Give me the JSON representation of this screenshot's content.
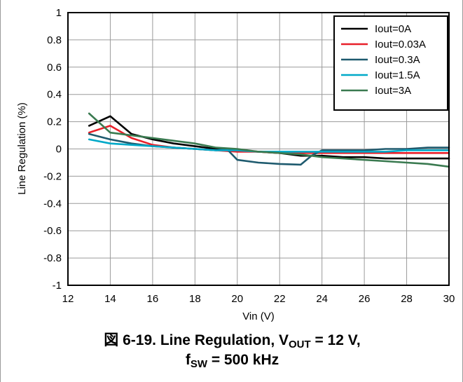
{
  "chart_data": {
    "type": "line",
    "title": "",
    "xlabel": "Vin (V)",
    "ylabel": "Line Regulation (%)",
    "xlim": [
      12,
      30
    ],
    "ylim": [
      -1,
      1
    ],
    "xticks": [
      12,
      14,
      16,
      18,
      20,
      22,
      24,
      26,
      28,
      30
    ],
    "yticks": [
      1,
      0.8,
      0.6,
      0.4,
      0.2,
      0,
      -0.2,
      -0.4,
      -0.6,
      -0.8,
      -1
    ],
    "grid": true,
    "legend_position": "top-right",
    "series": [
      {
        "name": "Iout=0A",
        "color": "#000000",
        "x": [
          13,
          14,
          15,
          16,
          17,
          18,
          19,
          20,
          21,
          22,
          23,
          24,
          25,
          26,
          27,
          28,
          29,
          30
        ],
        "y": [
          0.17,
          0.24,
          0.11,
          0.07,
          0.04,
          0.02,
          0.0,
          -0.01,
          -0.02,
          -0.03,
          -0.05,
          -0.05,
          -0.06,
          -0.06,
          -0.07,
          -0.07,
          -0.07,
          -0.07
        ]
      },
      {
        "name": "Iout=0.03A",
        "color": "#e8202a",
        "x": [
          13,
          14,
          15,
          16,
          17,
          18,
          19,
          20,
          21,
          22,
          23,
          24,
          25,
          26,
          27,
          28,
          29,
          30
        ],
        "y": [
          0.12,
          0.17,
          0.08,
          0.03,
          0.01,
          0.0,
          -0.01,
          -0.02,
          -0.02,
          -0.03,
          -0.03,
          -0.03,
          -0.03,
          -0.03,
          -0.03,
          -0.03,
          -0.03,
          -0.03
        ]
      },
      {
        "name": "Iout=0.3A",
        "color": "#1e5a6e",
        "x": [
          13,
          14,
          15,
          16,
          17,
          18,
          19,
          19.5,
          20,
          21,
          22,
          23,
          23.5,
          24,
          25,
          26,
          27,
          28,
          29,
          30
        ],
        "y": [
          0.11,
          0.07,
          0.04,
          0.02,
          0.01,
          0.0,
          -0.01,
          0.0,
          -0.08,
          -0.1,
          -0.11,
          -0.115,
          -0.05,
          -0.01,
          -0.01,
          -0.01,
          0.0,
          0.0,
          0.01,
          0.01
        ]
      },
      {
        "name": "Iout=1.5A",
        "color": "#00a9c8",
        "x": [
          13,
          14,
          15,
          16,
          17,
          18,
          19,
          20,
          21,
          22,
          23,
          24,
          25,
          26,
          27,
          28,
          29,
          30
        ],
        "y": [
          0.07,
          0.04,
          0.03,
          0.02,
          0.01,
          0.0,
          -0.01,
          -0.01,
          -0.02,
          -0.02,
          -0.02,
          -0.02,
          -0.02,
          -0.02,
          -0.02,
          -0.01,
          -0.01,
          -0.01
        ]
      },
      {
        "name": "Iout=3A",
        "color": "#3a7a50",
        "x": [
          13,
          14,
          15,
          16,
          17,
          18,
          19,
          20,
          21,
          22,
          23,
          24,
          25,
          26,
          27,
          28,
          29,
          30
        ],
        "y": [
          0.26,
          0.12,
          0.1,
          0.08,
          0.06,
          0.04,
          0.01,
          0.0,
          -0.02,
          -0.03,
          -0.04,
          -0.06,
          -0.07,
          -0.08,
          -0.09,
          -0.1,
          -0.11,
          -0.13
        ]
      }
    ]
  },
  "caption": {
    "prefix": "図 6-19. Line Regulation, V",
    "vout_sub": "OUT",
    "vout_value": " = 12 V,",
    "fsw_f": "f",
    "fsw_sub": "SW",
    "fsw_value": " = 500 kHz"
  }
}
